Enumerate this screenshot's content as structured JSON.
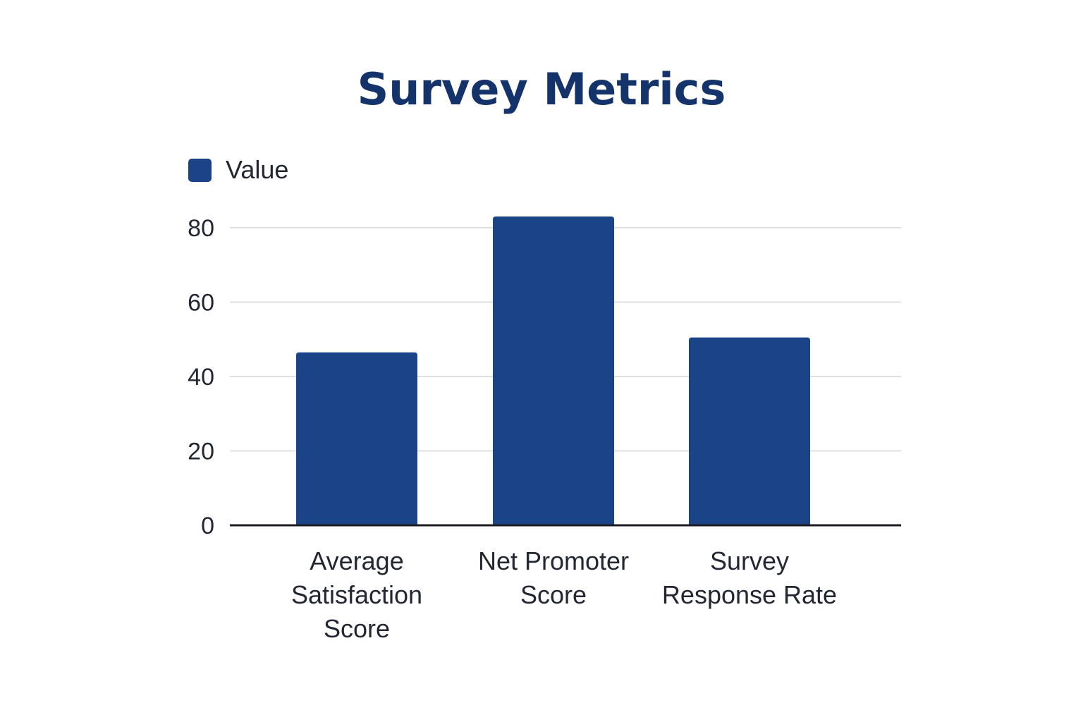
{
  "chart_data": {
    "type": "bar",
    "title": "Survey Metrics",
    "categories": [
      [
        "Average",
        "Satisfaction",
        "Score"
      ],
      [
        "Net Promoter",
        "Score"
      ],
      [
        "Survey",
        "Response Rate"
      ]
    ],
    "series": [
      {
        "name": "Value",
        "values": [
          46.5,
          83,
          50.5
        ]
      }
    ],
    "ylim": [
      0,
      80
    ],
    "yticks": [
      0,
      20,
      40,
      60,
      80
    ],
    "xlabel": "",
    "ylabel": "",
    "grid": true,
    "legend": "top-left"
  },
  "colors": {
    "bar": "#1a4388",
    "title": "#14336b",
    "text": "#222733",
    "grid": "#e0e0e0",
    "axis": "#1c1c24"
  }
}
